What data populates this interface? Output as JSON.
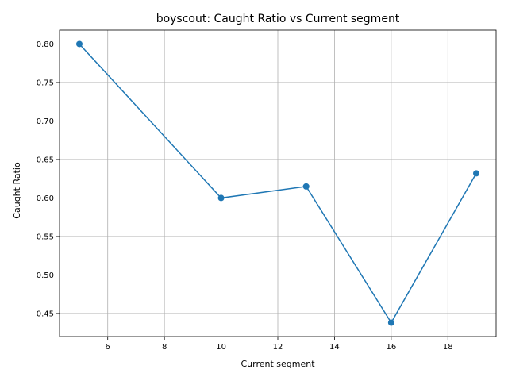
{
  "chart_data": {
    "type": "line",
    "title": "boyscout: Caught Ratio vs Current segment",
    "xlabel": "Current segment",
    "ylabel": "Caught Ratio",
    "xlim": [
      4.3,
      19.7
    ],
    "ylim": [
      0.42,
      0.818
    ],
    "xticks": [
      6,
      8,
      10,
      12,
      14,
      16,
      18
    ],
    "yticks": [
      0.45,
      0.5,
      0.55,
      0.6,
      0.65,
      0.7,
      0.75,
      0.8
    ],
    "grid": true,
    "series": [
      {
        "x": [
          5,
          10,
          13,
          16,
          19
        ],
        "y": [
          0.8,
          0.6,
          0.615,
          0.438,
          0.632
        ],
        "color": "#1f77b4",
        "marker": "circle"
      }
    ]
  }
}
